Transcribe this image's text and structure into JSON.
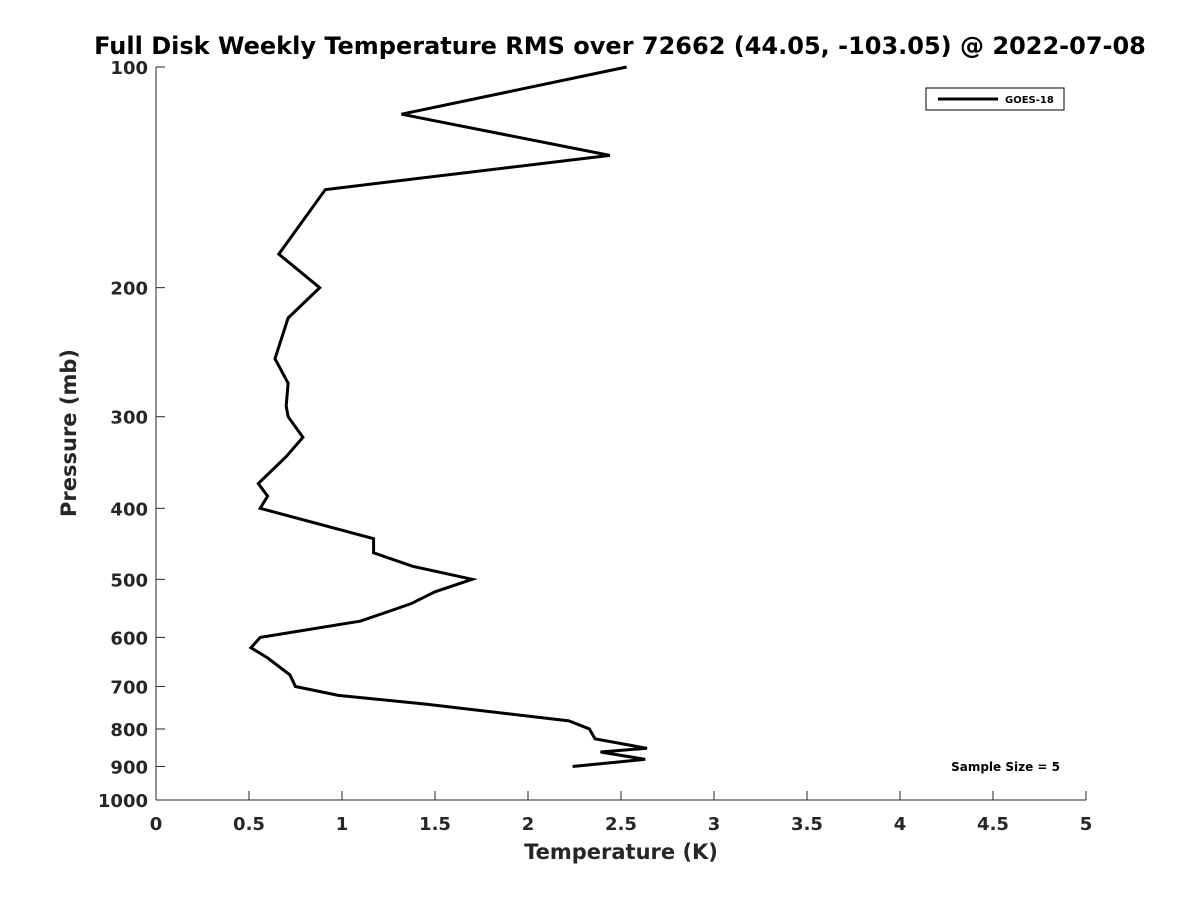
{
  "chart_data": {
    "type": "line",
    "title": "Full Disk Weekly Temperature RMS over 72662 (44.05, -103.05) @ 2022-07-08",
    "xlabel": "Temperature (K)",
    "ylabel": "Pressure (mb)",
    "xlim": [
      0,
      5
    ],
    "ylim": [
      100,
      1000
    ],
    "y_scale": "log",
    "y_reversed": true,
    "x_ticks": [
      "0",
      "0.5",
      "1",
      "1.5",
      "2",
      "2.5",
      "3",
      "3.5",
      "4",
      "4.5",
      "5"
    ],
    "y_ticks": [
      "100",
      "200",
      "300",
      "400",
      "500",
      "600",
      "700",
      "800",
      "900",
      "1000"
    ],
    "grid": false,
    "legend_position": "top-right",
    "annotation": "Sample Size = 5",
    "series": [
      {
        "name": "GOES-18",
        "color": "#000000",
        "points": [
          {
            "x": 2.53,
            "y": 100
          },
          {
            "x": 1.32,
            "y": 116
          },
          {
            "x": 2.44,
            "y": 132
          },
          {
            "x": 0.91,
            "y": 147
          },
          {
            "x": 0.66,
            "y": 180
          },
          {
            "x": 0.88,
            "y": 200
          },
          {
            "x": 0.71,
            "y": 220
          },
          {
            "x": 0.64,
            "y": 250
          },
          {
            "x": 0.71,
            "y": 270
          },
          {
            "x": 0.7,
            "y": 290
          },
          {
            "x": 0.71,
            "y": 300
          },
          {
            "x": 0.79,
            "y": 320
          },
          {
            "x": 0.7,
            "y": 340
          },
          {
            "x": 0.55,
            "y": 370
          },
          {
            "x": 0.6,
            "y": 385
          },
          {
            "x": 0.56,
            "y": 400
          },
          {
            "x": 1.17,
            "y": 440
          },
          {
            "x": 1.17,
            "y": 460
          },
          {
            "x": 1.38,
            "y": 480
          },
          {
            "x": 1.7,
            "y": 500
          },
          {
            "x": 1.5,
            "y": 520
          },
          {
            "x": 1.37,
            "y": 540
          },
          {
            "x": 1.1,
            "y": 570
          },
          {
            "x": 0.56,
            "y": 600
          },
          {
            "x": 0.51,
            "y": 620
          },
          {
            "x": 0.6,
            "y": 640
          },
          {
            "x": 0.72,
            "y": 675
          },
          {
            "x": 0.75,
            "y": 700
          },
          {
            "x": 0.98,
            "y": 720
          },
          {
            "x": 1.45,
            "y": 740
          },
          {
            "x": 2.22,
            "y": 780
          },
          {
            "x": 2.33,
            "y": 800
          },
          {
            "x": 2.36,
            "y": 825
          },
          {
            "x": 2.64,
            "y": 850
          },
          {
            "x": 2.39,
            "y": 860
          },
          {
            "x": 2.63,
            "y": 880
          },
          {
            "x": 2.24,
            "y": 900
          }
        ]
      }
    ]
  }
}
